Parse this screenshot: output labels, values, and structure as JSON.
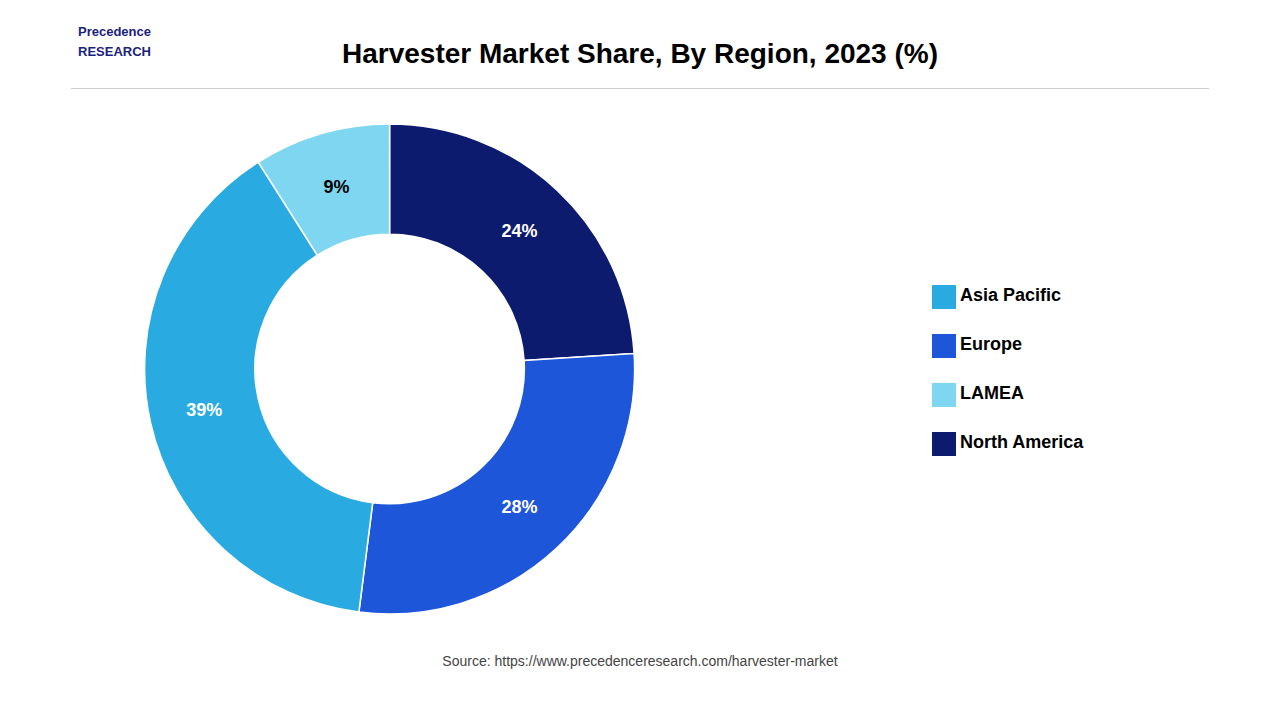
{
  "chart_data": {
    "type": "pie",
    "title": "Harvester Market Share, By Region, 2023 (%)",
    "categories": [
      "North America",
      "Europe",
      "Asia Pacific",
      "LAMEA"
    ],
    "values": [
      24,
      28,
      39,
      9
    ],
    "value_labels": [
      "24%",
      "28%",
      "39%",
      "9%"
    ],
    "colors": [
      "#0d1b6e",
      "#1e56d9",
      "#29abe2",
      "#7fd6f0"
    ],
    "data_labels": true,
    "legend": "right",
    "annotations": [
      "Source: https://www.precedenceresearch.com/harvester-market",
      "Precedence\nRESEARCH"
    ]
  }
}
